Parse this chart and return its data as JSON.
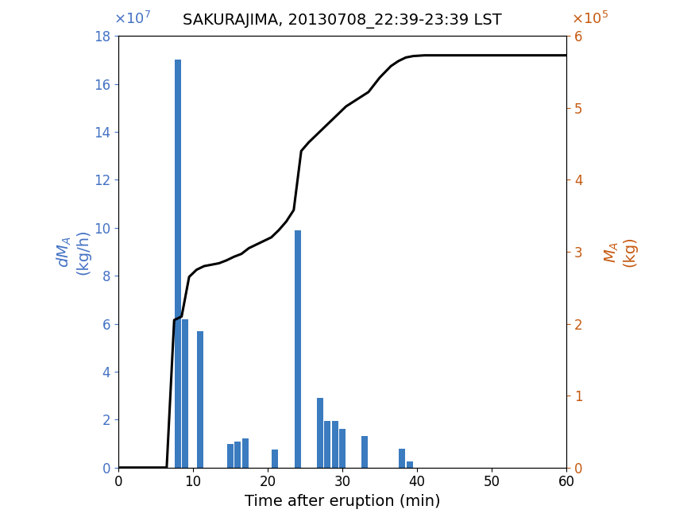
{
  "title": "SAKURAJIMA, 20130708_22:39-23:39 LST",
  "xlabel": "Time after eruption (min)",
  "ylabel_left": "dM_A (kg/h)",
  "ylabel_right": "M_A (kg)",
  "bar_centers": [
    8,
    9,
    11,
    15,
    16,
    17,
    21,
    24,
    27,
    28,
    29,
    30,
    33,
    38,
    39
  ],
  "bar_heights": [
    17.0,
    6.2,
    5.7,
    1.0,
    1.1,
    1.2,
    0.75,
    9.9,
    2.9,
    1.95,
    1.95,
    1.6,
    1.3,
    0.8,
    0.25
  ],
  "bar_width": 0.85,
  "bar_color": "#3b7bbf",
  "xlim": [
    0,
    60
  ],
  "ylim_left": [
    0,
    18
  ],
  "ylim_right": [
    0,
    6
  ],
  "line_x": [
    0,
    6.5,
    7.5,
    8.5,
    9.5,
    10.5,
    11.5,
    12.5,
    13.5,
    14.5,
    15.5,
    16.5,
    17.5,
    18.5,
    19.5,
    20.5,
    21.5,
    22.5,
    23.5,
    24.5,
    25.5,
    26.5,
    27.5,
    28.5,
    29.5,
    30.5,
    32.0,
    33.5,
    35.0,
    36.5,
    37.5,
    38.5,
    39.5,
    41.0,
    60
  ],
  "line_y_right": [
    0,
    0,
    2.05,
    2.1,
    2.65,
    2.75,
    2.8,
    2.82,
    2.84,
    2.88,
    2.93,
    2.97,
    3.05,
    3.1,
    3.15,
    3.2,
    3.3,
    3.42,
    3.58,
    4.4,
    4.52,
    4.62,
    4.72,
    4.82,
    4.92,
    5.02,
    5.12,
    5.22,
    5.42,
    5.58,
    5.65,
    5.7,
    5.72,
    5.73,
    5.73
  ],
  "line_color": "#000000",
  "line_width": 2.2,
  "xticks": [
    0,
    10,
    20,
    30,
    40,
    50,
    60
  ],
  "left_yticks": [
    0,
    2,
    4,
    6,
    8,
    10,
    12,
    14,
    16,
    18
  ],
  "right_yticks": [
    0,
    1,
    2,
    3,
    4,
    5,
    6
  ],
  "left_tick_color": "#4472c4",
  "right_tick_color": "#c55a11",
  "bg_color": "#ffffff",
  "title_fontsize": 14,
  "label_fontsize": 14,
  "tick_fontsize": 12,
  "exp_fontsize": 13
}
